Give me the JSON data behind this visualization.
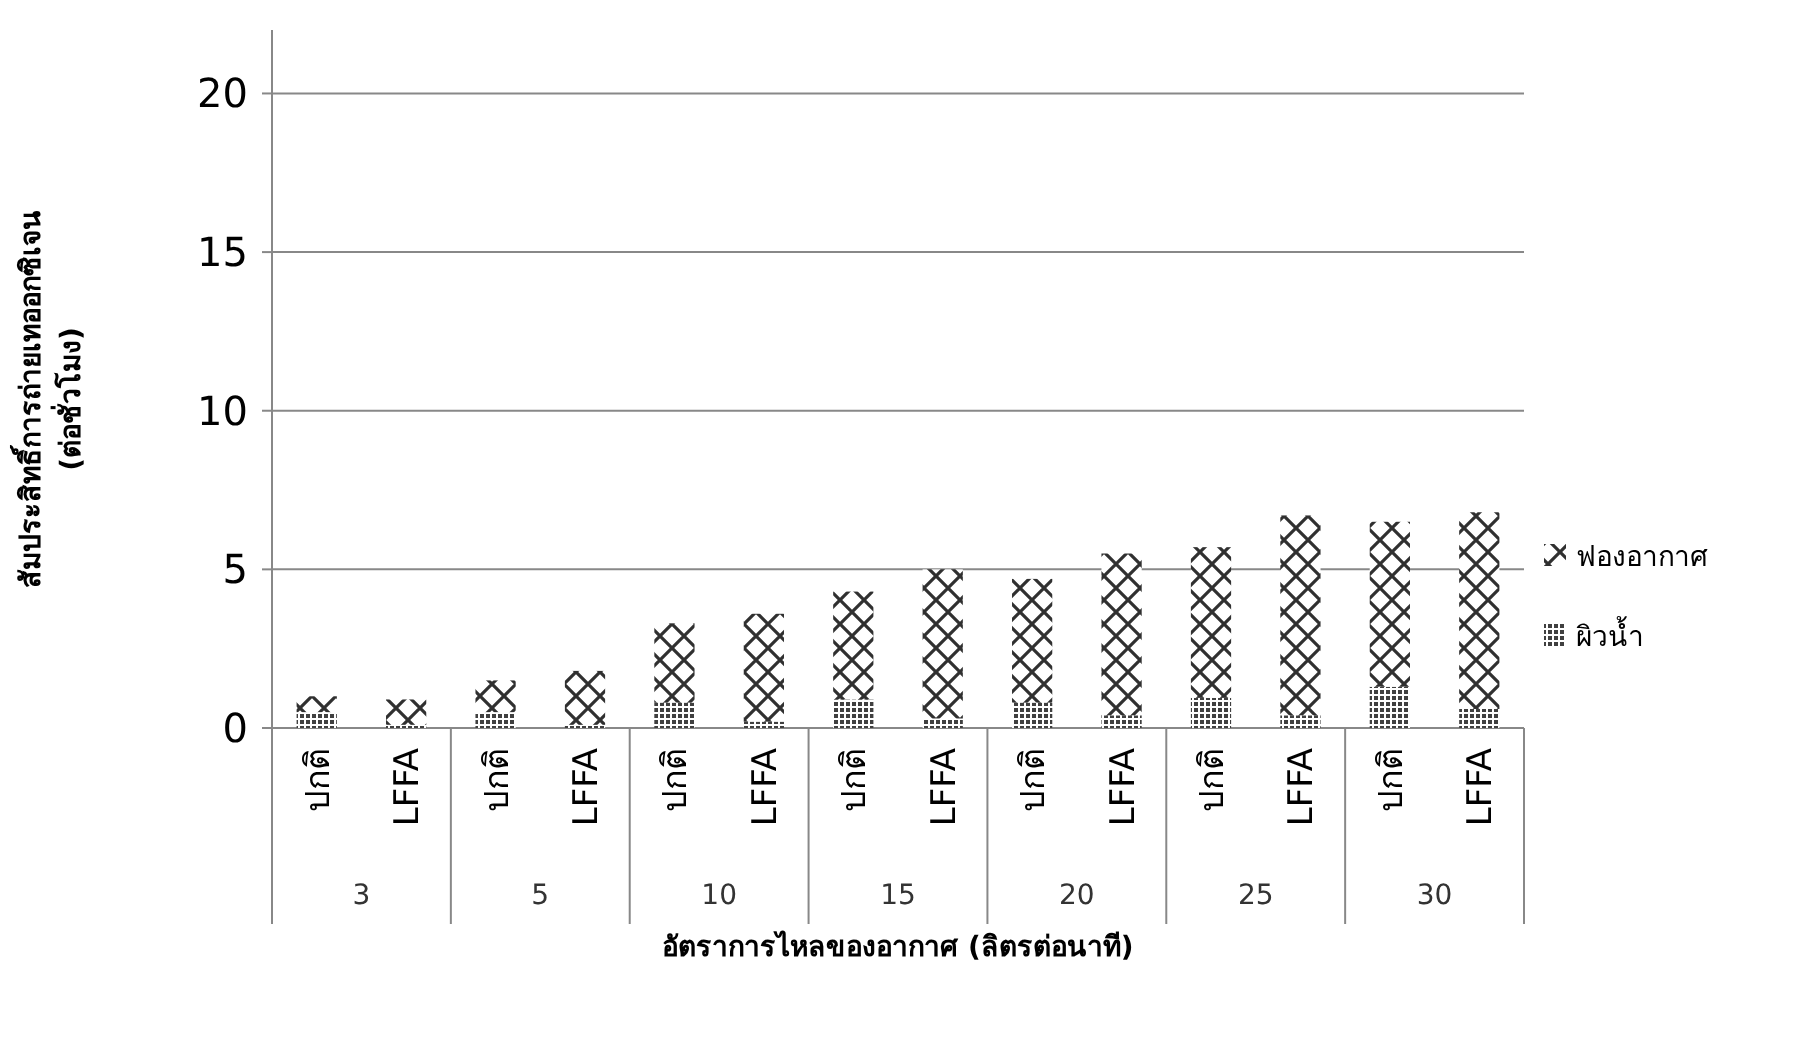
{
  "chart_data": {
    "type": "bar",
    "stacked": true,
    "ylabel": "สัมประสิทธิ์การถ่ายเทออกซิเจน\n(ต่อชั่วโมง)",
    "xlabel": "อัตราการไหลของอากาศ (ลิตรต่อนาที)",
    "categories": [
      "ปกติ",
      "LFFA",
      "ปกติ",
      "LFFA",
      "ปกติ",
      "LFFA",
      "ปกติ",
      "LFFA",
      "ปกติ",
      "LFFA",
      "ปกติ",
      "LFFA",
      "ปกติ",
      "LFFA"
    ],
    "annotations": [
      "3",
      "5",
      "10",
      "15",
      "20",
      "25",
      "30"
    ],
    "series": [
      {
        "name": "ผิวน้ำ",
        "color": "#404040",
        "values": [
          0.5,
          0.1,
          0.5,
          0.1,
          0.8,
          0.2,
          0.9,
          0.3,
          0.8,
          0.4,
          0.95,
          0.4,
          1.3,
          0.6
        ]
      },
      {
        "name": "ฟองอากาศ",
        "color": "#303030",
        "values": [
          0.5,
          0.8,
          1.0,
          1.7,
          2.5,
          3.4,
          3.4,
          4.7,
          3.9,
          5.1,
          4.75,
          6.3,
          5.2,
          6.2
        ]
      }
    ],
    "ylim": [
      0,
      22
    ],
    "yticks": [
      0,
      5,
      10,
      15,
      20
    ],
    "grid": "y",
    "legend": "right"
  }
}
